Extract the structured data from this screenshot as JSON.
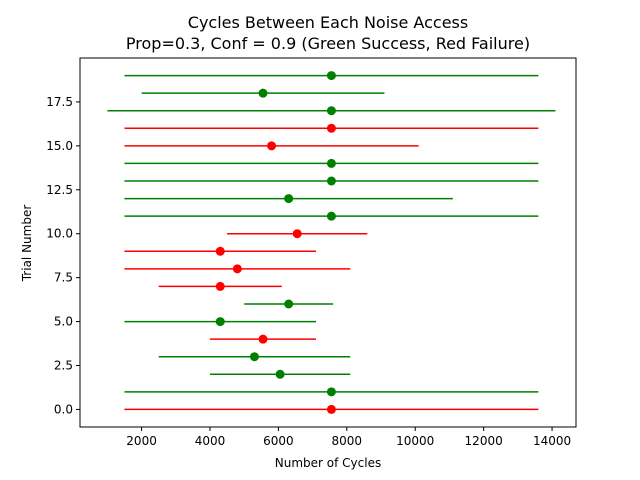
{
  "chart_data": {
    "type": "errorbar",
    "title": "Cycles Between Each Noise Access",
    "subtitle": "Prop=0.3, Conf = 0.9 (Green Success, Red Failure)",
    "xlabel": "Number of Cycles",
    "ylabel": "Trial Number",
    "xlim": [
      200,
      14700
    ],
    "ylim": [
      -1,
      20
    ],
    "xticks": [
      2000,
      4000,
      6000,
      8000,
      10000,
      12000,
      14000
    ],
    "xtick_labels": [
      "2000",
      "4000",
      "6000",
      "8000",
      "10000",
      "12000",
      "14000"
    ],
    "yticks": [
      0,
      2.5,
      5,
      7.5,
      10,
      12.5,
      15,
      17.5
    ],
    "ytick_labels": [
      "0.0",
      "2.5",
      "5.0",
      "7.5",
      "10.0",
      "12.5",
      "15.0",
      "17.5"
    ],
    "grid": false,
    "colors": {
      "success": "#008000",
      "failure": "#ff0000"
    },
    "trials": [
      {
        "trial": 0,
        "center": 7550,
        "low": 1500,
        "high": 13600,
        "outcome": "failure"
      },
      {
        "trial": 1,
        "center": 7550,
        "low": 1500,
        "high": 13600,
        "outcome": "success"
      },
      {
        "trial": 2,
        "center": 6050,
        "low": 4000,
        "high": 8100,
        "outcome": "success"
      },
      {
        "trial": 3,
        "center": 5300,
        "low": 2500,
        "high": 8100,
        "outcome": "success"
      },
      {
        "trial": 4,
        "center": 5550,
        "low": 4000,
        "high": 7100,
        "outcome": "failure"
      },
      {
        "trial": 5,
        "center": 4300,
        "low": 1500,
        "high": 7100,
        "outcome": "success"
      },
      {
        "trial": 6,
        "center": 6300,
        "low": 5000,
        "high": 7600,
        "outcome": "success"
      },
      {
        "trial": 7,
        "center": 4300,
        "low": 2500,
        "high": 6100,
        "outcome": "failure"
      },
      {
        "trial": 8,
        "center": 4800,
        "low": 1500,
        "high": 8100,
        "outcome": "failure"
      },
      {
        "trial": 9,
        "center": 4300,
        "low": 1500,
        "high": 7100,
        "outcome": "failure"
      },
      {
        "trial": 10,
        "center": 6550,
        "low": 4500,
        "high": 8600,
        "outcome": "failure"
      },
      {
        "trial": 11,
        "center": 7550,
        "low": 1500,
        "high": 13600,
        "outcome": "success"
      },
      {
        "trial": 12,
        "center": 6300,
        "low": 1500,
        "high": 11100,
        "outcome": "success"
      },
      {
        "trial": 13,
        "center": 7550,
        "low": 1500,
        "high": 13600,
        "outcome": "success"
      },
      {
        "trial": 14,
        "center": 7550,
        "low": 1500,
        "high": 13600,
        "outcome": "success"
      },
      {
        "trial": 15,
        "center": 5800,
        "low": 1500,
        "high": 10100,
        "outcome": "failure"
      },
      {
        "trial": 16,
        "center": 7550,
        "low": 1500,
        "high": 13600,
        "outcome": "failure"
      },
      {
        "trial": 17,
        "center": 7550,
        "low": 1000,
        "high": 14100,
        "outcome": "success"
      },
      {
        "trial": 18,
        "center": 5550,
        "low": 2000,
        "high": 9100,
        "outcome": "success"
      },
      {
        "trial": 19,
        "center": 7550,
        "low": 1500,
        "high": 13600,
        "outcome": "success"
      }
    ]
  }
}
